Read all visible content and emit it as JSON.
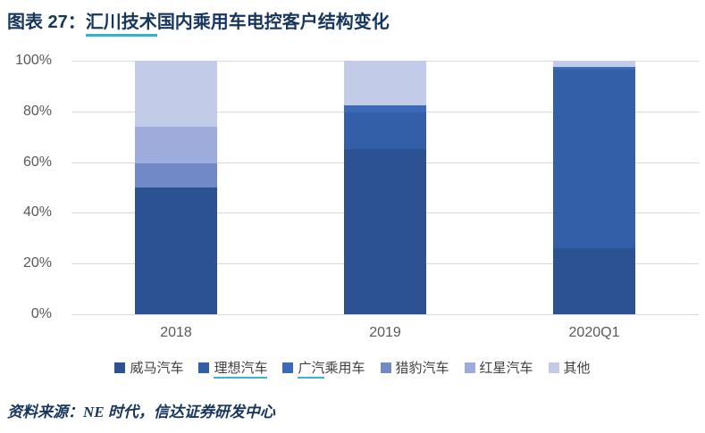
{
  "title": {
    "prefix": "图表 27：",
    "underlined": "汇川技术",
    "rest": "国内乘用车电控客户结构变化"
  },
  "source": {
    "label": "资料来源：",
    "text": "NE 时代，信达证券研发中心"
  },
  "colors": {
    "title_navy": "#16365d",
    "link_underline_teal": "#2fb3d0",
    "gridline": "#d9d9d9",
    "axis_text": "#595959",
    "legend_text": "#404040"
  },
  "chart_data": {
    "type": "bar",
    "stacked": true,
    "percent_stacked": true,
    "title": "汇川技术国内乘用车电控客户结构变化",
    "categories": [
      "2018",
      "2019",
      "2020Q1"
    ],
    "series": [
      {
        "name": "威马汽车",
        "color": "#2c5294",
        "values": [
          50,
          65,
          26
        ],
        "underlined_prefix": 0
      },
      {
        "name": "理想汽车",
        "color": "#335fa8",
        "values": [
          0,
          14.5,
          70.5
        ],
        "underlined_prefix": 4
      },
      {
        "name": "广汽乘用车",
        "color": "#3c6ab8",
        "values": [
          0,
          3,
          1
        ],
        "underlined_prefix": 2
      },
      {
        "name": "猎豹汽车",
        "color": "#7289c8",
        "values": [
          9.5,
          0,
          0
        ],
        "underlined_prefix": 0
      },
      {
        "name": "红星汽车",
        "color": "#9dacda",
        "values": [
          14.5,
          0,
          0
        ],
        "underlined_prefix": 0
      },
      {
        "name": "其他",
        "color": "#c2cbe7",
        "values": [
          26,
          17.5,
          2.5
        ],
        "underlined_prefix": 0
      }
    ],
    "y_ticks": [
      "100%",
      "80%",
      "60%",
      "40%",
      "20%",
      "0%"
    ],
    "ylim": [
      0,
      100
    ],
    "xlabel": "",
    "ylabel": "",
    "grid": true,
    "legend_position": "bottom"
  }
}
